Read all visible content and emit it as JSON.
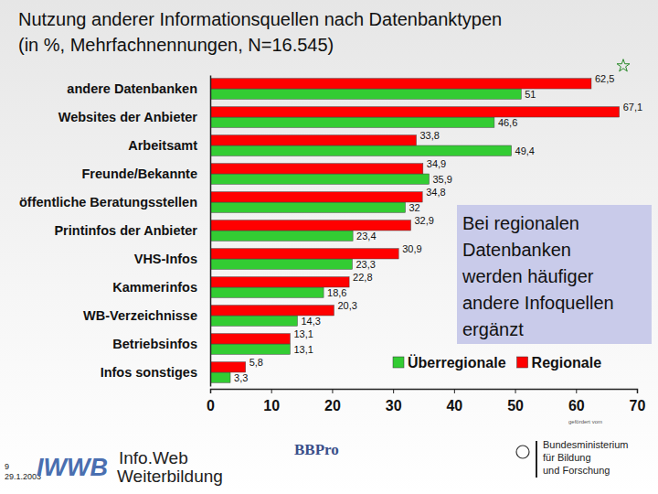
{
  "chart_data": {
    "type": "bar",
    "orientation": "horizontal",
    "title": "Nutzung anderer Informationsquellen nach Datenbanktypen (in %, Mehrfachnennungen, N=16.545)",
    "categories": [
      "andere Datenbanken",
      "Websites der Anbieter",
      "Arbeitsamt",
      "Freunde/Bekannte",
      "öffentliche Beratungsstellen",
      "Printinfos der Anbieter",
      "VHS-Infos",
      "Kammerinfos",
      "WB-Verzeichnisse",
      "Betriebsinfos",
      "Infos sonstiges"
    ],
    "series": [
      {
        "name": "Überregionale",
        "color": "#33cc33",
        "values": [
          51,
          46.6,
          49.4,
          35.9,
          32,
          23.4,
          23.3,
          18.6,
          14.3,
          13.1,
          3.3
        ],
        "value_labels": [
          "51",
          "46,6",
          "49,4",
          "35,9",
          "32",
          "23,4",
          "23,3",
          "18,6",
          "14,3",
          "13,1",
          "3,3"
        ]
      },
      {
        "name": "Regionale",
        "color": "#ff0000",
        "values": [
          62.5,
          67.1,
          33.8,
          34.9,
          34.8,
          32.9,
          30.9,
          22.8,
          20.3,
          13.1,
          5.8
        ],
        "value_labels": [
          "62,5",
          "67,1",
          "33,8",
          "34,9",
          "34,8",
          "32,9",
          "30,9",
          "22,8",
          "20,3",
          "13,1",
          "5,8"
        ]
      }
    ],
    "xlim": [
      0,
      70
    ],
    "xticks": [
      0,
      10,
      20,
      30,
      40,
      50,
      60,
      70
    ],
    "data_labels": true,
    "grid": false,
    "legend": "lower right",
    "annotations": [
      "Bei regionalen Datenbanken werden häufiger andere Infoquellen ergänzt"
    ]
  },
  "footer": {
    "page": "9",
    "date": "29.1.2003",
    "logo": "IWWB",
    "brand": [
      "Info.Web",
      "Weiterbildung"
    ],
    "partner": "BBPro",
    "funded_by": "gefördert vom",
    "ministry": [
      "Bundesministerium",
      "für Bildung",
      "und Forschung"
    ]
  }
}
